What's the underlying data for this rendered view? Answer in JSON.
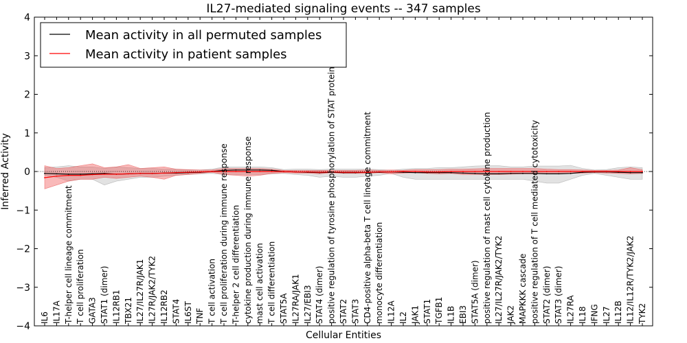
{
  "chart_data": {
    "type": "line",
    "title": "IL27-mediated signaling events -- 347 samples",
    "xlabel": "Cellular Entities",
    "ylabel": "Inferred Activity",
    "ylim": [
      -4,
      4
    ],
    "yticks": [
      -4,
      -3,
      -2,
      -1,
      0,
      1,
      2,
      3,
      4
    ],
    "legend": {
      "position": "top-left"
    },
    "categories": [
      "IL6",
      "IL17A",
      "T-helper cell lineage commitment",
      "T cell proliferation",
      "GATA3",
      "STAT1 (dimer)",
      "IL12RB1",
      "TBX21",
      "IL27/IL27R/JAK1",
      "IL27R/JAK2/TYK2",
      "IL12RB2",
      "STAT4",
      "IL6ST",
      "TNF",
      "T cell activation",
      "T cell proliferation during immune response",
      "T-helper 2 cell differentiation",
      "cytokine production during immune response",
      "mast cell activation",
      "T cell differentiation",
      "STAT5A",
      "IL27RA/JAK1",
      "IL27/EBI3",
      "STAT4 (dimer)",
      "positive regulation of tyrosine phosphorylation of STAT protein",
      "STAT2",
      "STAT3",
      "CD4-positive alpha-beta T cell lineage commitment",
      "monocyte differentiation",
      "IL12A",
      "IL2",
      "JAK1",
      "STAT1",
      "TGFB1",
      "IL1B",
      "EBI3",
      "STAT5A (dimer)",
      "positive regulation of mast cell cytokine production",
      "IL27/IL27R/JAK2/TYK2",
      "JAK2",
      "MAPKKK cascade",
      "positive regulation of T cell mediated cytotoxicity",
      "STAT2 (dimer)",
      "STAT3 (dimer)",
      "IL27RA",
      "IL18",
      "IFNG",
      "IL27",
      "IL12B",
      "IL12/IL12R/TYK2/JAK2",
      "TYK2"
    ],
    "series": [
      {
        "name": "Mean activity in all permuted samples",
        "color": "#000000",
        "values": [
          -0.05,
          -0.06,
          -0.07,
          -0.07,
          -0.06,
          -0.05,
          -0.07,
          -0.06,
          -0.05,
          -0.05,
          -0.04,
          -0.04,
          -0.03,
          -0.02,
          0.0,
          0.03,
          0.04,
          0.04,
          0.04,
          0.03,
          0.0,
          -0.01,
          -0.02,
          -0.03,
          -0.02,
          -0.03,
          -0.03,
          -0.02,
          -0.02,
          -0.01,
          -0.02,
          -0.03,
          -0.03,
          -0.03,
          -0.03,
          -0.04,
          -0.05,
          -0.06,
          -0.06,
          -0.05,
          -0.05,
          -0.05,
          -0.06,
          -0.06,
          -0.05,
          -0.02,
          -0.01,
          -0.01,
          -0.02,
          -0.03,
          -0.03
        ],
        "band_lower": [
          -0.1,
          -0.15,
          -0.25,
          -0.2,
          -0.2,
          -0.35,
          -0.25,
          -0.2,
          -0.15,
          -0.15,
          -0.12,
          -0.1,
          -0.08,
          -0.06,
          -0.05,
          -0.08,
          -0.08,
          -0.08,
          -0.08,
          -0.06,
          -0.05,
          -0.08,
          -0.1,
          -0.15,
          -0.12,
          -0.15,
          -0.15,
          -0.12,
          -0.1,
          -0.05,
          -0.15,
          -0.2,
          -0.2,
          -0.2,
          -0.2,
          -0.2,
          -0.2,
          -0.2,
          -0.2,
          -0.2,
          -0.2,
          -0.25,
          -0.3,
          -0.3,
          -0.2,
          -0.1,
          -0.05,
          -0.1,
          -0.15,
          -0.2,
          -0.2
        ],
        "band_upper": [
          0.1,
          0.12,
          0.15,
          0.12,
          0.12,
          0.08,
          0.12,
          0.1,
          0.08,
          0.08,
          0.06,
          0.06,
          0.04,
          0.04,
          0.06,
          0.12,
          0.12,
          0.12,
          0.12,
          0.1,
          0.05,
          0.06,
          0.06,
          0.05,
          0.06,
          0.06,
          0.06,
          0.06,
          0.05,
          0.03,
          0.06,
          0.08,
          0.08,
          0.1,
          0.1,
          0.12,
          0.14,
          0.15,
          0.15,
          0.12,
          0.12,
          0.14,
          0.14,
          0.14,
          0.16,
          0.08,
          0.04,
          0.05,
          0.1,
          0.12,
          0.1
        ]
      },
      {
        "name": "Mean activity in patient samples",
        "color": "#ff0000",
        "values": [
          -0.16,
          -0.12,
          -0.1,
          -0.1,
          -0.08,
          -0.07,
          -0.07,
          -0.06,
          -0.05,
          -0.05,
          -0.04,
          -0.03,
          -0.02,
          -0.01,
          0.0,
          0.0,
          0.0,
          0.0,
          0.0,
          0.0,
          0.0,
          -0.01,
          -0.01,
          -0.02,
          -0.01,
          -0.02,
          -0.02,
          -0.02,
          -0.01,
          -0.01,
          0.0,
          0.0,
          -0.01,
          -0.01,
          0.0,
          0.0,
          0.0,
          0.0,
          0.0,
          0.0,
          0.0,
          0.0,
          0.0,
          0.0,
          0.0,
          0.0,
          0.0,
          0.0,
          0.0,
          0.0,
          0.0
        ],
        "band_lower": [
          -0.45,
          -0.35,
          -0.25,
          -0.2,
          -0.2,
          -0.15,
          -0.18,
          -0.15,
          -0.12,
          -0.15,
          -0.2,
          -0.1,
          -0.08,
          -0.05,
          -0.02,
          -0.08,
          -0.1,
          -0.12,
          -0.1,
          -0.05,
          -0.03,
          -0.04,
          -0.04,
          -0.06,
          -0.03,
          -0.05,
          -0.05,
          -0.05,
          -0.03,
          -0.06,
          -0.04,
          -0.03,
          -0.05,
          -0.06,
          -0.05,
          -0.08,
          -0.08,
          -0.08,
          -0.08,
          -0.07,
          -0.06,
          -0.06,
          -0.06,
          -0.06,
          -0.05,
          -0.04,
          -0.03,
          -0.04,
          -0.05,
          -0.06,
          -0.05
        ],
        "band_upper": [
          0.15,
          0.08,
          0.1,
          0.15,
          0.2,
          0.1,
          0.12,
          0.18,
          0.08,
          0.1,
          0.12,
          0.06,
          0.05,
          0.04,
          0.04,
          0.08,
          0.08,
          0.08,
          0.08,
          0.06,
          0.03,
          0.03,
          0.03,
          0.03,
          0.03,
          0.03,
          0.03,
          0.04,
          0.03,
          0.04,
          0.03,
          0.05,
          0.05,
          0.05,
          0.06,
          0.06,
          0.07,
          0.08,
          0.08,
          0.08,
          0.08,
          0.08,
          0.06,
          0.05,
          0.05,
          0.04,
          0.03,
          0.03,
          0.04,
          0.1,
          0.05
        ]
      }
    ]
  }
}
